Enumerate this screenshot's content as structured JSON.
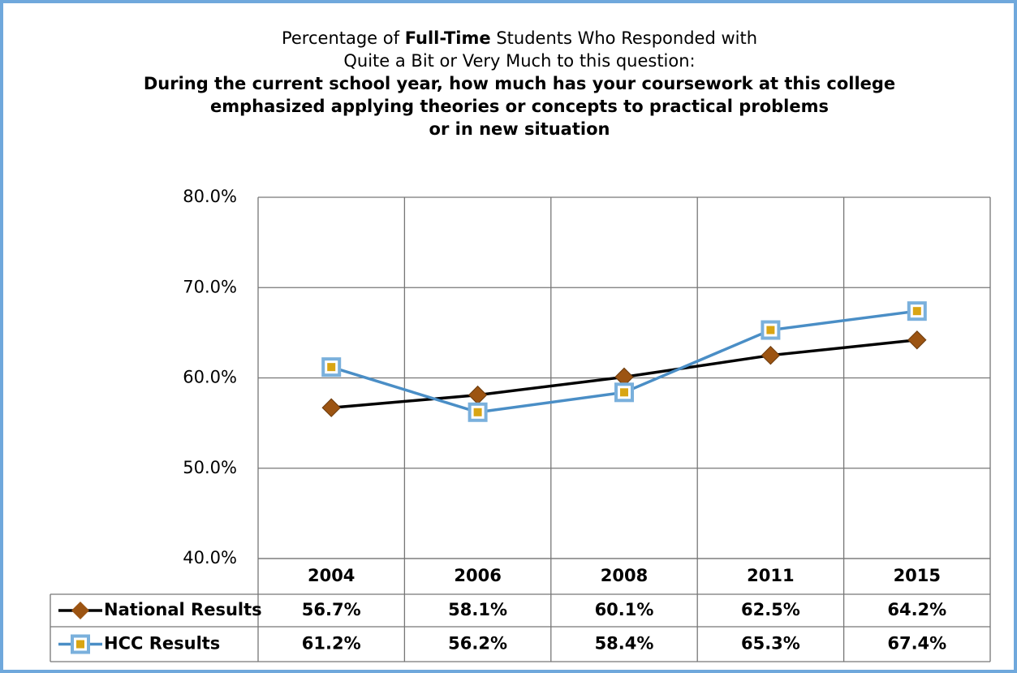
{
  "chart_data": {
    "type": "line",
    "title": [
      [
        "Percentage of ",
        "Full-Time",
        " Students Who Responded with"
      ],
      [
        "Quite a Bit or Very Much to this question:"
      ]
    ],
    "subtitle": [
      "During the current school year, how much has your coursework at this college",
      "emphasized applying theories or concepts to practical problems",
      "or in new situation"
    ],
    "categories": [
      "2004",
      "2006",
      "2008",
      "2011",
      "2015"
    ],
    "series": [
      {
        "name": "National Results",
        "color": "#000000",
        "marker": "diamond",
        "marker_color": "#9c5412",
        "values": [
          56.7,
          58.1,
          60.1,
          62.5,
          64.2
        ],
        "value_labels": [
          "56.7%",
          "58.1%",
          "60.1%",
          "62.5%",
          "64.2%"
        ]
      },
      {
        "name": "HCC Results",
        "color": "#4a8ec6",
        "marker": "square",
        "marker_color": "#d9a514",
        "values": [
          61.2,
          56.2,
          58.4,
          65.3,
          67.4
        ],
        "value_labels": [
          "61.2%",
          "56.2%",
          "58.4%",
          "65.3%",
          "67.4%"
        ]
      }
    ],
    "ylim": [
      40,
      80
    ],
    "yticks": [
      {
        "value": 40,
        "label": "40.0%"
      },
      {
        "value": 50,
        "label": "50.0%"
      },
      {
        "value": 60,
        "label": "60.0%"
      },
      {
        "value": 70,
        "label": "70.0%"
      },
      {
        "value": 80,
        "label": "80.0%"
      }
    ],
    "grid": true
  }
}
